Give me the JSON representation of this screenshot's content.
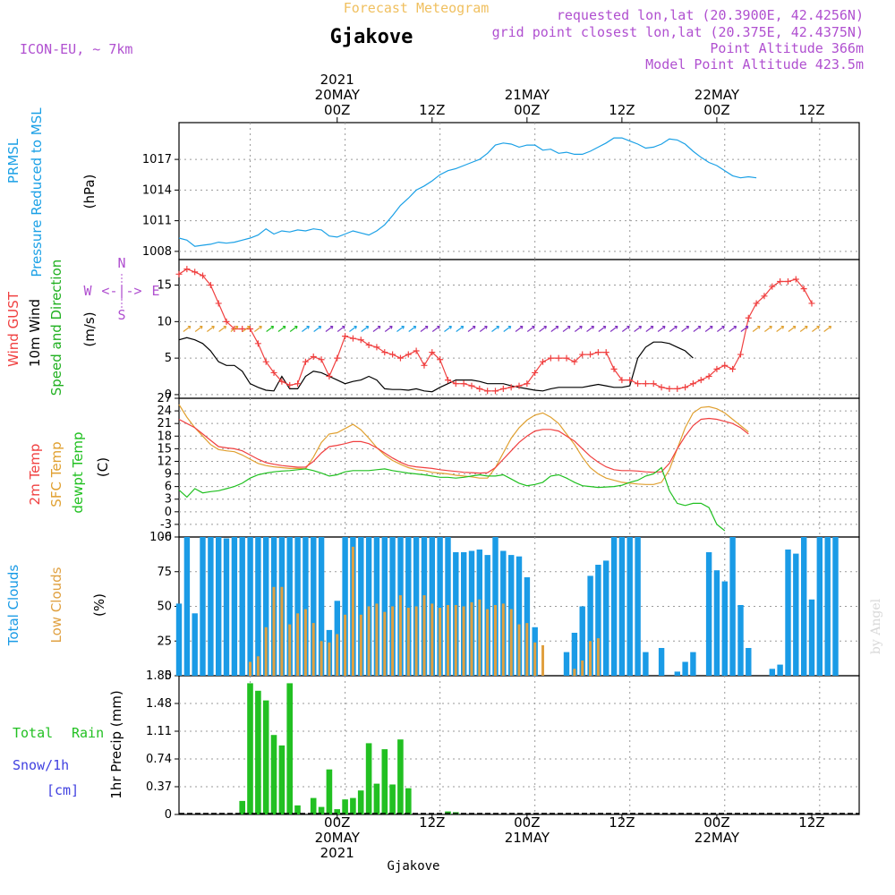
{
  "header": {
    "product": "Forecast Meteogram",
    "location": "Gjakove",
    "model": "ICON-EU, ~ 7km",
    "requested": "requested lon,lat (20.3900E, 42.4256N)",
    "grid_point": "grid point closest lon,lat (20.375E, 42.4375N)",
    "point_alt": "Point Altitude 366m",
    "model_alt": "Model Point Altitude 423.5m",
    "footer_location": "Gjakove",
    "watermark": "by Angel"
  },
  "time_axis": {
    "top_labels": [
      {
        "lines": [
          "2021",
          "20MAY",
          "00Z"
        ],
        "h": 11
      },
      {
        "lines": [
          "12Z"
        ],
        "h": 23
      },
      {
        "lines": [
          "21MAY",
          "00Z"
        ],
        "h": 35
      },
      {
        "lines": [
          "12Z"
        ],
        "h": 47
      },
      {
        "lines": [
          "22MAY",
          "00Z"
        ],
        "h": 59
      },
      {
        "lines": [
          "12Z"
        ],
        "h": 71
      }
    ],
    "bottom_labels": [
      {
        "lines": [
          "00Z",
          "20MAY",
          "2021"
        ],
        "h": 11
      },
      {
        "lines": [
          "12Z"
        ],
        "h": 23
      },
      {
        "lines": [
          "00Z",
          "21MAY"
        ],
        "h": 35
      },
      {
        "lines": [
          "12Z"
        ],
        "h": 47
      },
      {
        "lines": [
          "00Z",
          "22MAY"
        ],
        "h": 59
      },
      {
        "lines": [
          "12Z"
        ],
        "h": 71
      }
    ]
  },
  "panels": {
    "pressure": {
      "title1": "PRMSL",
      "title2": "Pressure Reduced to MSL",
      "unit": "(hPa)",
      "ticks": [
        "1008",
        "1011",
        "1014",
        "1017"
      ]
    },
    "wind": {
      "title1": "Wind GUST",
      "title2": "10m Wind",
      "title3": "Speed and Direction",
      "unit": "(m/s)",
      "ticks": [
        "0",
        "5",
        "10",
        "15"
      ],
      "compass_n": "N",
      "compass_s": "S",
      "compass_w": "W",
      "compass_e": "E",
      "compass_arrow": "<-|->"
    },
    "temp": {
      "title1": "2m Temp",
      "title2": "SFC Temp",
      "title3": "dewpt Temp",
      "unit": "(C)",
      "ticks": [
        "-6",
        "-3",
        "0",
        "3",
        "6",
        "9",
        "12",
        "15",
        "18",
        "21",
        "24",
        "27"
      ]
    },
    "clouds": {
      "title1": "Total Clouds",
      "title2": "Low Clouds",
      "unit": "(%)",
      "ticks": [
        "0",
        "25",
        "50",
        "75",
        "100"
      ]
    },
    "precip": {
      "title1": "Total",
      "title1b": "Rain",
      "title2": "Snow/1h",
      "title3": "[cm]",
      "unit": "1hr Precip (mm)",
      "ticks": [
        "0",
        "0.37",
        "0.74",
        "1.11",
        "1.48",
        "1.85"
      ]
    }
  },
  "colors": {
    "pressure": "#1aa0e6",
    "gust": "#f04040",
    "wind": "#000000",
    "windlabel": "#20b020",
    "t2m": "#f04040",
    "sfc": "#e0a030",
    "dew": "#20c020",
    "total_cloud": "#1a9be6",
    "low_cloud": "#e0a040",
    "rain": "#22c022",
    "snow": "#4040e0",
    "header_orange": "#f0c060",
    "header_purple": "#b050d0"
  },
  "chart_data": [
    {
      "type": "line",
      "title": "PRMSL Pressure Reduced to MSL",
      "ylabel": "(hPa)",
      "ylim": [
        1007.2,
        1020.6
      ],
      "x_start_hours": -9,
      "x_step_hours": 1,
      "series": [
        {
          "name": "PRMSL",
          "values": [
            1009.3,
            1009.1,
            1008.5,
            1008.6,
            1008.7,
            1008.9,
            1008.8,
            1008.9,
            1009.1,
            1009.3,
            1009.6,
            1010.2,
            1009.7,
            1010.0,
            1009.9,
            1010.1,
            1010.0,
            1010.2,
            1010.1,
            1009.5,
            1009.4,
            1009.7,
            1010.0,
            1009.8,
            1009.6,
            1010.0,
            1010.6,
            1011.5,
            1012.5,
            1013.2,
            1014.0,
            1014.4,
            1014.9,
            1015.5,
            1015.9,
            1016.1,
            1016.4,
            1016.7,
            1017.0,
            1017.6,
            1018.4,
            1018.6,
            1018.5,
            1018.2,
            1018.4,
            1018.4,
            1017.9,
            1018.0,
            1017.6,
            1017.7,
            1017.5,
            1017.5,
            1017.8,
            1018.2,
            1018.6,
            1019.1,
            1019.1,
            1018.8,
            1018.5,
            1018.1,
            1018.2,
            1018.5,
            1019.0,
            1018.9,
            1018.5,
            1017.8,
            1017.2,
            1016.7,
            1016.4,
            1015.9,
            1015.4,
            1015.2,
            1015.3,
            1015.2
          ]
        }
      ]
    },
    {
      "type": "line",
      "title": "Wind GUST / 10m Wind Speed and Direction",
      "ylabel": "(m/s)",
      "ylim": [
        -0.5,
        18.5
      ],
      "x_start_hours": -9,
      "x_step_hours": 1,
      "series": [
        {
          "name": "Wind GUST",
          "values": [
            16.5,
            17.2,
            16.8,
            16.3,
            15.0,
            12.5,
            10.0,
            9.0,
            9.0,
            9.0,
            7.0,
            4.5,
            3.0,
            1.8,
            1.3,
            1.5,
            4.5,
            5.2,
            4.8,
            2.5,
            5.0,
            8.0,
            7.7,
            7.5,
            6.8,
            6.5,
            5.8,
            5.5,
            5.0,
            5.5,
            6.0,
            4.0,
            5.8,
            4.8,
            2.0,
            1.5,
            1.5,
            1.2,
            0.8,
            0.5,
            0.5,
            0.8,
            1.0,
            1.2,
            1.5,
            3.0,
            4.5,
            5.0,
            5.0,
            5.0,
            4.5,
            5.5,
            5.5,
            5.8,
            5.8,
            3.5,
            2.0,
            2.0,
            1.5,
            1.5,
            1.5,
            1.0,
            0.8,
            0.8,
            1.0,
            1.5,
            2.0,
            2.5,
            3.5,
            4.0,
            3.5,
            5.5,
            10.5,
            12.5,
            13.5,
            14.8,
            15.5,
            15.5,
            15.8,
            14.5,
            12.5
          ]
        },
        {
          "name": "10m Wind",
          "values": [
            7.5,
            7.8,
            7.5,
            7.0,
            6.0,
            4.5,
            4.0,
            4.0,
            3.2,
            1.5,
            1.0,
            0.6,
            0.5,
            2.5,
            0.8,
            0.8,
            2.5,
            3.2,
            3.0,
            2.5,
            2.0,
            1.5,
            1.8,
            2.0,
            2.5,
            2.0,
            0.8,
            0.7,
            0.7,
            0.6,
            0.8,
            0.5,
            0.4,
            1.0,
            1.5,
            2.0,
            2.0,
            2.0,
            1.8,
            1.5,
            1.5,
            1.5,
            1.2,
            1.0,
            0.8,
            0.6,
            0.5,
            0.8,
            1.0,
            1.0,
            1.0,
            1.0,
            1.2,
            1.4,
            1.2,
            1.0,
            1.0,
            1.2,
            5.0,
            6.5,
            7.2,
            7.2,
            7.0,
            6.5,
            6.0,
            5.0
          ]
        }
      ]
    },
    {
      "type": "line",
      "title": "2m Temp / SFC Temp / dewpt Temp",
      "ylabel": "(C)",
      "ylim": [
        -6,
        27
      ],
      "x_start_hours": -9,
      "x_step_hours": 1,
      "series": [
        {
          "name": "2m Temp",
          "values": [
            22.0,
            21.0,
            20.0,
            18.5,
            17.0,
            15.5,
            15.2,
            15.0,
            14.5,
            13.5,
            12.5,
            11.7,
            11.3,
            11.0,
            10.8,
            10.6,
            10.6,
            12.0,
            14.0,
            15.5,
            15.8,
            16.2,
            16.7,
            16.7,
            16.2,
            15.2,
            14.0,
            12.8,
            11.8,
            11.0,
            10.7,
            10.5,
            10.3,
            10.0,
            9.8,
            9.6,
            9.4,
            9.3,
            9.2,
            9.3,
            10.5,
            12.5,
            14.5,
            16.5,
            18.0,
            19.2,
            19.6,
            19.6,
            19.2,
            18.0,
            16.8,
            15.0,
            13.2,
            11.8,
            10.7,
            10.0,
            9.8,
            9.8,
            9.7,
            9.5,
            9.4,
            9.5,
            11.5,
            15.0,
            18.0,
            20.5,
            22.0,
            22.2,
            22.0,
            21.5,
            21.0,
            20.0,
            18.5
          ]
        },
        {
          "name": "SFC Temp",
          "values": [
            25.5,
            22.5,
            20.0,
            18.0,
            16.0,
            14.8,
            14.5,
            14.3,
            13.5,
            12.5,
            11.5,
            11.0,
            10.7,
            10.5,
            10.3,
            10.3,
            10.2,
            13.0,
            16.5,
            18.5,
            18.8,
            19.8,
            20.8,
            19.5,
            17.5,
            15.3,
            13.5,
            12.2,
            11.3,
            10.5,
            10.0,
            9.8,
            9.4,
            9.2,
            9.0,
            8.7,
            8.5,
            8.3,
            8.0,
            8.0,
            10.5,
            14.0,
            17.5,
            20.0,
            21.8,
            23.0,
            23.5,
            22.5,
            21.0,
            18.5,
            16.0,
            13.0,
            10.5,
            9.0,
            8.0,
            7.5,
            7.0,
            6.8,
            6.6,
            6.5,
            6.5,
            7.0,
            10.0,
            15.0,
            20.0,
            23.5,
            24.8,
            25.0,
            24.5,
            23.5,
            22.0,
            20.5,
            19.0
          ]
        },
        {
          "name": "dewpt Temp",
          "values": [
            5.2,
            3.5,
            5.5,
            4.5,
            4.8,
            5.0,
            5.5,
            6.0,
            6.8,
            8.0,
            8.8,
            9.2,
            9.5,
            9.7,
            9.8,
            10.0,
            10.2,
            9.8,
            9.2,
            8.5,
            8.8,
            9.5,
            9.8,
            9.8,
            9.8,
            10.0,
            10.2,
            9.8,
            9.5,
            9.2,
            9.0,
            8.8,
            8.5,
            8.2,
            8.2,
            8.0,
            8.2,
            8.5,
            8.8,
            8.5,
            8.5,
            8.8,
            7.8,
            6.8,
            6.2,
            6.5,
            7.0,
            8.5,
            8.8,
            8.0,
            7.0,
            6.2,
            6.0,
            5.8,
            5.9,
            6.0,
            6.3,
            7.0,
            7.5,
            8.5,
            9.0,
            10.5,
            5.0,
            2.0,
            1.5,
            2.0,
            2.0,
            1.0,
            -3.0,
            -4.5
          ]
        }
      ]
    },
    {
      "type": "bar",
      "title": "Total Clouds / Low Clouds",
      "ylabel": "(%)",
      "ylim": [
        0,
        100
      ],
      "x_start_hours": -9,
      "x_step_hours": 1,
      "series": [
        {
          "name": "Total Clouds",
          "values": [
            52,
            100,
            45,
            100,
            100,
            100,
            99,
            100,
            100,
            100,
            100,
            100,
            100,
            100,
            100,
            100,
            100,
            100,
            100,
            33,
            54,
            100,
            100,
            100,
            100,
            100,
            100,
            100,
            100,
            100,
            100,
            100,
            100,
            100,
            100,
            89,
            89,
            90,
            91,
            87,
            100,
            90,
            87,
            86,
            71,
            35,
            0,
            0,
            0,
            17,
            31,
            50,
            72,
            80,
            83,
            100,
            100,
            100,
            100,
            17,
            0,
            20,
            0,
            3,
            10,
            17,
            0,
            89,
            76,
            68,
            100,
            51,
            20,
            0,
            0,
            5,
            8,
            91,
            88,
            100,
            55,
            100,
            100,
            100
          ]
        },
        {
          "name": "Low Clouds",
          "values": [
            0,
            0,
            0,
            0,
            0,
            0,
            0,
            0,
            0,
            10,
            14,
            35,
            64,
            64,
            37,
            45,
            48,
            38,
            25,
            24,
            30,
            44,
            93,
            44,
            50,
            52,
            46,
            50,
            58,
            49,
            50,
            58,
            52,
            49,
            51,
            51,
            50,
            53,
            55,
            48,
            51,
            52,
            48,
            37,
            38,
            24,
            22,
            0,
            0,
            0,
            5,
            11,
            25,
            27,
            0,
            0,
            0,
            0,
            0,
            0,
            0,
            0,
            0,
            0,
            0,
            0,
            0,
            0,
            0,
            0,
            0,
            0,
            0,
            0,
            0,
            0,
            0,
            0,
            0,
            0,
            0,
            0,
            0,
            0
          ]
        }
      ]
    },
    {
      "type": "bar",
      "title": "Total Rain Snow/1h [cm]",
      "ylabel": "1hr Precip (mm)",
      "ylim": [
        0,
        1.85
      ],
      "x_start_hours": -9,
      "x_step_hours": 1,
      "series": [
        {
          "name": "Total Rain",
          "values": [
            0,
            0,
            0,
            0,
            0,
            0,
            0,
            0,
            0.18,
            1.75,
            1.65,
            1.52,
            1.06,
            0.92,
            1.75,
            0.12,
            0,
            0.22,
            0.1,
            0.6,
            0.07,
            0.2,
            0.22,
            0.32,
            0.95,
            0.41,
            0.87,
            0.4,
            1.0,
            0.35,
            0,
            0,
            0,
            0,
            0.04,
            0.03,
            0,
            0,
            0,
            0,
            0,
            0,
            0,
            0,
            0,
            0,
            0,
            0,
            0,
            0,
            0,
            0,
            0,
            0,
            0,
            0,
            0,
            0,
            0,
            0,
            0,
            0,
            0,
            0,
            0,
            0,
            0,
            0,
            0,
            0,
            0,
            0,
            0,
            0
          ]
        },
        {
          "name": "Snow/1h",
          "values": []
        }
      ]
    }
  ]
}
